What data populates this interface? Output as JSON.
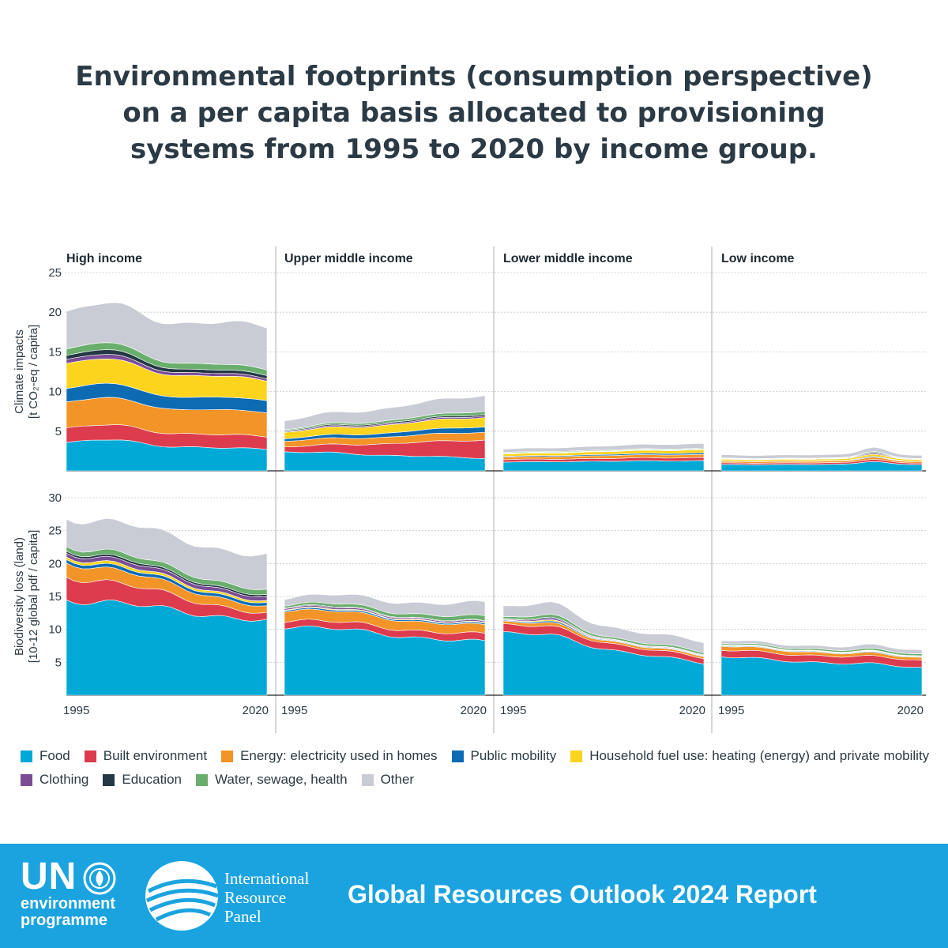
{
  "title": "Environmental footprints (consumption perspective) on a per capita basis allocated to provisioning systems from 1995 to 2020 by income group.",
  "footer": {
    "un_line1": "UN",
    "un_line2": "environment",
    "un_line3": "programme",
    "irp_line1": "International",
    "irp_line2": "Resource",
    "irp_line3": "Panel",
    "report": "Global Resources Outlook 2024 Report"
  },
  "legend": [
    {
      "label": "Food",
      "color": "#00a9d6"
    },
    {
      "label": "Built environment",
      "color": "#dc3c4e"
    },
    {
      "label": "Energy: electricity used in homes",
      "color": "#f39428"
    },
    {
      "label": "Public mobility",
      "color": "#0d6bb4"
    },
    {
      "label": "Household fuel use: heating (energy) and private mobility",
      "color": "#fcd41e"
    },
    {
      "label": "Clothing",
      "color": "#7a4d95"
    },
    {
      "label": "Education",
      "color": "#243744"
    },
    {
      "label": "Water, sewage, health",
      "color": "#6aae6d"
    },
    {
      "label": "Other",
      "color": "#c9ccd5"
    }
  ],
  "chart_data": {
    "type": "area",
    "stacked": true,
    "panels": [
      "High income",
      "Upper middle income",
      "Lower middle income",
      "Low income"
    ],
    "x": [
      1995,
      1996,
      1997,
      1998,
      1999,
      2000,
      2001,
      2002,
      2003,
      2004,
      2005,
      2006,
      2007,
      2008,
      2009,
      2010,
      2011,
      2012,
      2013,
      2014,
      2015,
      2016,
      2017,
      2018,
      2019,
      2020
    ],
    "x_tick_labels": [
      "1995",
      "2020"
    ],
    "series_names": [
      "Food",
      "Built environment",
      "Energy: electricity used in homes",
      "Public mobility",
      "Household fuel use: heating (energy) and private mobility",
      "Clothing",
      "Education",
      "Water, sewage, health",
      "Other"
    ],
    "rows": [
      {
        "ylabel_line1": "Climate impacts",
        "ylabel_line2": "[t CO₂-eq / capita]",
        "ylim": [
          0,
          25
        ],
        "yticks": [
          "5",
          "10",
          "15",
          "20",
          "25"
        ],
        "ytick_values": [
          5,
          10,
          15,
          20,
          25
        ],
        "panels": [
          {
            "start": [
              3.5,
              1.8,
              3.3,
              1.7,
              3.1,
              0.5,
              0.5,
              0.8,
              4.6
            ],
            "end": [
              2.7,
              1.6,
              3.0,
              1.5,
              2.5,
              0.3,
              0.4,
              0.7,
              5.4
            ],
            "bump": 1.0
          },
          {
            "start": [
              2.3,
              0.6,
              0.7,
              0.3,
              0.8,
              0.1,
              0.1,
              0.1,
              1.1
            ],
            "end": [
              1.6,
              2.3,
              1.0,
              0.7,
              1.2,
              0.2,
              0.2,
              0.4,
              2.0
            ],
            "bump": 0.3
          },
          {
            "start": [
              1.1,
              0.3,
              0.3,
              0.1,
              0.3,
              0.05,
              0.05,
              0.1,
              0.4
            ],
            "end": [
              1.3,
              0.4,
              0.4,
              0.2,
              0.4,
              0.05,
              0.05,
              0.1,
              0.6
            ],
            "bump": 0.05
          },
          {
            "start": [
              0.8,
              0.2,
              0.2,
              0.05,
              0.2,
              0.05,
              0.05,
              0.05,
              0.4
            ],
            "end": [
              0.8,
              0.2,
              0.2,
              0.05,
              0.2,
              0.05,
              0.05,
              0.05,
              0.4
            ],
            "bump": 0.7
          }
        ]
      },
      {
        "ylabel_line1": "Biodiversity loss (land)",
        "ylabel_line2": "[10-12 global pdf / capita]",
        "ylim": [
          0,
          30
        ],
        "yticks": [
          "5",
          "10",
          "15",
          "20",
          "25",
          "30"
        ],
        "ytick_values": [
          5,
          10,
          15,
          20,
          25,
          30
        ],
        "panels": [
          {
            "start": [
              14.6,
              3.6,
              2.2,
              0.5,
              0.4,
              0.6,
              0.3,
              0.7,
              4.3
            ],
            "end": [
              11.3,
              1.0,
              1.0,
              0.5,
              0.3,
              0.6,
              0.3,
              0.8,
              5.2
            ],
            "bump": 0.5
          },
          {
            "start": [
              10.5,
              1.0,
              1.6,
              0.2,
              0.1,
              0.2,
              0.1,
              0.3,
              1.0
            ],
            "end": [
              8.0,
              1.1,
              1.3,
              0.2,
              0.1,
              0.2,
              0.1,
              0.7,
              2.1
            ],
            "bump": 0.3
          },
          {
            "start": [
              9.4,
              1.2,
              0.4,
              0.1,
              0.05,
              0.1,
              0.05,
              0.3,
              1.6
            ],
            "end": [
              4.8,
              0.8,
              0.3,
              0.1,
              0.05,
              0.1,
              0.05,
              0.3,
              1.5
            ],
            "bump": 1.2
          },
          {
            "start": [
              5.8,
              1.0,
              0.6,
              0.1,
              0.05,
              0.05,
              0.05,
              0.2,
              0.4
            ],
            "end": [
              4.2,
              1.1,
              0.4,
              0.1,
              0.05,
              0.05,
              0.05,
              0.3,
              0.6
            ],
            "bump": 0.2
          }
        ]
      }
    ]
  }
}
